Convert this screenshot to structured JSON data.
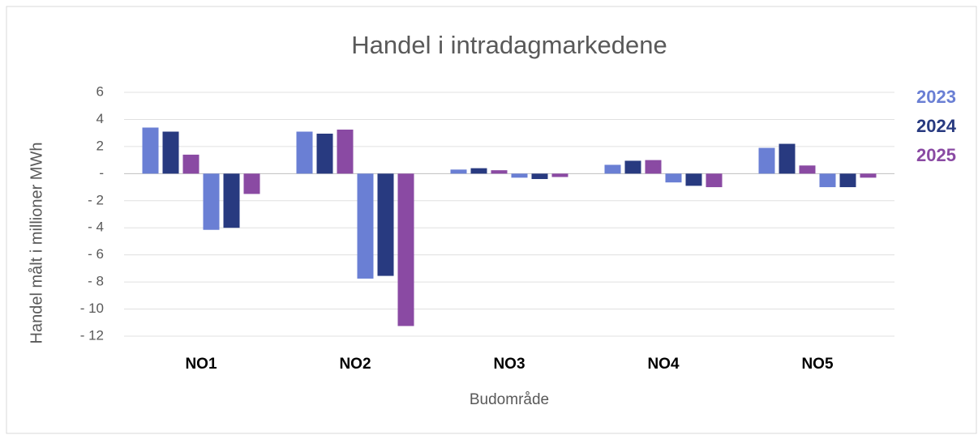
{
  "chart_data": {
    "type": "bar",
    "title": "Handel i intradagmarkedene",
    "x_label": "Budområde",
    "y_label": "Handel målt i millioner MWh",
    "categories": [
      "NO1",
      "NO2",
      "NO3",
      "NO4",
      "NO5"
    ],
    "series": [
      {
        "name": "2023",
        "color": "#6a7fd4",
        "values": [
          [
            3.4,
            -4.15
          ],
          [
            3.1,
            -7.75
          ],
          [
            0.3,
            -0.3
          ],
          [
            0.65,
            -0.65
          ],
          [
            1.9,
            -1.0
          ]
        ]
      },
      {
        "name": "2024",
        "color": "#283a80",
        "values": [
          [
            3.1,
            -4.0
          ],
          [
            2.95,
            -7.55
          ],
          [
            0.4,
            -0.4
          ],
          [
            0.95,
            -0.9
          ],
          [
            2.2,
            -1.0
          ]
        ]
      },
      {
        "name": "2025",
        "color": "#8a4aa3",
        "values": [
          [
            1.4,
            -1.5
          ],
          [
            3.25,
            -11.25
          ],
          [
            0.25,
            -0.25
          ],
          [
            1.0,
            -1.0
          ],
          [
            0.6,
            -0.3
          ]
        ]
      }
    ],
    "ylim": [
      -12,
      6
    ],
    "yticks": [
      6,
      4,
      2,
      {
        "value": 0,
        "label": "-"
      },
      {
        "value": -2,
        "label": "- 2"
      },
      {
        "value": -4,
        "label": "- 4"
      },
      {
        "value": -6,
        "label": "- 6"
      },
      {
        "value": -8,
        "label": "- 8"
      },
      {
        "value": -10,
        "label": "- 10"
      },
      {
        "value": -12,
        "label": "- 12"
      }
    ],
    "grid": true,
    "legend": "right"
  }
}
